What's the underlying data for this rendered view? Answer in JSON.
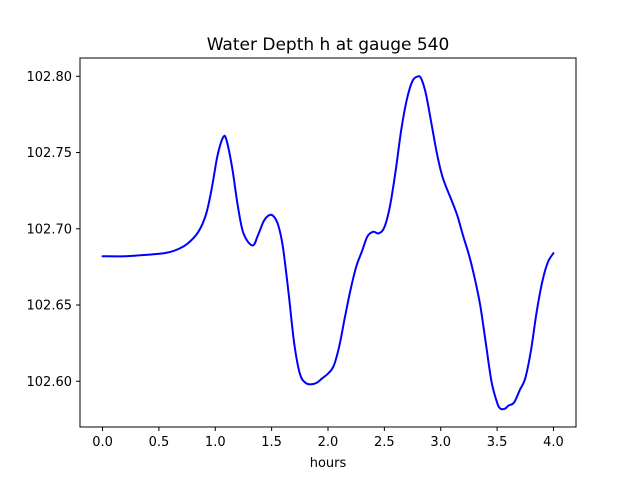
{
  "chart_data": {
    "type": "line",
    "title": "Water Depth h at gauge 540",
    "xlabel": "hours",
    "ylabel": "",
    "xlim": [
      -0.2,
      4.2
    ],
    "ylim": [
      102.57,
      102.812
    ],
    "grid": false,
    "x_ticks": [
      0.0,
      0.5,
      1.0,
      1.5,
      2.0,
      2.5,
      3.0,
      3.5,
      4.0
    ],
    "x_tick_labels": [
      "0.0",
      "0.5",
      "1.0",
      "1.5",
      "2.0",
      "2.5",
      "3.0",
      "3.5",
      "4.0"
    ],
    "y_ticks": [
      102.6,
      102.65,
      102.7,
      102.75,
      102.8
    ],
    "y_tick_labels": [
      "102.60",
      "102.65",
      "102.70",
      "102.75",
      "102.80"
    ],
    "series": [
      {
        "color": "#0000ff",
        "x": [
          0.0,
          0.2,
          0.4,
          0.55,
          0.65,
          0.75,
          0.85,
          0.92,
          0.97,
          1.02,
          1.07,
          1.1,
          1.15,
          1.2,
          1.25,
          1.33,
          1.38,
          1.43,
          1.48,
          1.52,
          1.56,
          1.6,
          1.65,
          1.7,
          1.75,
          1.8,
          1.85,
          1.9,
          1.95,
          2.0,
          2.05,
          2.1,
          2.15,
          2.2,
          2.25,
          2.3,
          2.35,
          2.4,
          2.45,
          2.5,
          2.55,
          2.6,
          2.65,
          2.7,
          2.75,
          2.8,
          2.83,
          2.87,
          2.92,
          2.97,
          3.02,
          3.1,
          3.15,
          3.2,
          3.25,
          3.3,
          3.35,
          3.4,
          3.45,
          3.5,
          3.53,
          3.57,
          3.6,
          3.65,
          3.7,
          3.75,
          3.8,
          3.85,
          3.9,
          3.95,
          4.0
        ],
        "y": [
          102.682,
          102.682,
          102.683,
          102.684,
          102.686,
          102.69,
          102.698,
          102.71,
          102.727,
          102.748,
          102.76,
          102.758,
          102.74,
          102.715,
          102.697,
          102.689,
          102.696,
          102.705,
          102.709,
          102.708,
          102.702,
          102.688,
          102.658,
          102.625,
          102.605,
          102.599,
          102.598,
          102.599,
          102.602,
          102.605,
          102.61,
          102.623,
          102.642,
          102.66,
          102.675,
          102.685,
          102.695,
          102.698,
          102.697,
          102.701,
          102.715,
          102.738,
          102.765,
          102.785,
          102.797,
          102.8,
          102.798,
          102.788,
          102.768,
          102.748,
          102.733,
          102.718,
          102.708,
          102.695,
          102.683,
          102.668,
          102.65,
          102.625,
          102.6,
          102.586,
          102.582,
          102.582,
          102.584,
          102.586,
          102.594,
          102.602,
          102.62,
          102.645,
          102.665,
          102.678,
          102.684
        ]
      }
    ]
  }
}
